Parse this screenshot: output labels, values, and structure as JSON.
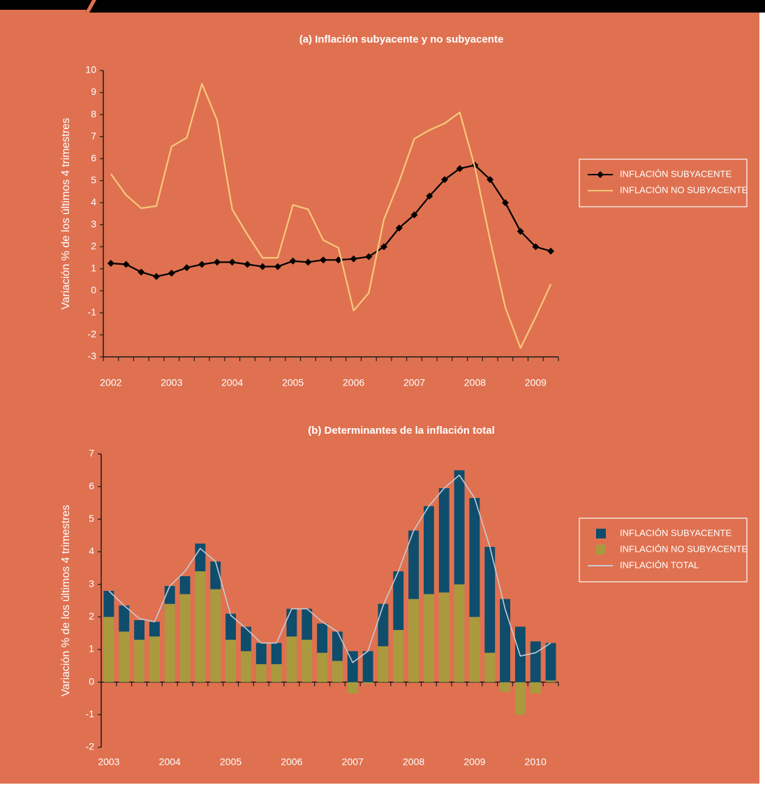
{
  "chart_data": [
    {
      "type": "line",
      "title": "(a) Inflación subyacente y no subyacente",
      "y_label": "Variación % de los últimos 4 trimestres",
      "categories": [
        "2002",
        null,
        null,
        null,
        "2003",
        null,
        null,
        null,
        "2004",
        null,
        null,
        null,
        "2005",
        null,
        null,
        null,
        "2006",
        null,
        null,
        null,
        "2007",
        null,
        null,
        null,
        "2008",
        null,
        null,
        null,
        "2009",
        null
      ],
      "ylim": [
        -3,
        10
      ],
      "yticks": [
        -3,
        -2,
        -1,
        0,
        1,
        2,
        3,
        4,
        5,
        6,
        7,
        8,
        9,
        10
      ],
      "legend": "right",
      "series": [
        {
          "name": "INFLACIÓN SUBYACENTE",
          "color": "#000000",
          "marker": "diamond",
          "values": [
            1.25,
            1.2,
            0.85,
            0.65,
            0.8,
            1.05,
            1.2,
            1.3,
            1.3,
            1.2,
            1.1,
            1.1,
            1.35,
            1.3,
            1.4,
            1.4,
            1.45,
            1.55,
            2.0,
            2.85,
            3.45,
            4.3,
            5.05,
            5.55,
            5.7,
            5.05,
            4.0,
            2.7,
            2.0,
            1.8
          ]
        },
        {
          "name": "INFLACIÓN NO SUBYACENTE",
          "color": "#f7c97a",
          "values": [
            5.3,
            4.35,
            3.75,
            3.85,
            6.55,
            6.95,
            9.4,
            7.75,
            3.7,
            2.55,
            1.5,
            1.5,
            3.9,
            3.7,
            2.3,
            1.95,
            -0.9,
            -0.1,
            3.25,
            4.95,
            6.9,
            7.3,
            7.6,
            8.1,
            5.6,
            2.3,
            -0.75,
            -2.6,
            -1.2,
            0.3
          ]
        }
      ]
    },
    {
      "type": "bar",
      "stacked": true,
      "title": "(b) Determinantes de la inflación total",
      "y_label": "Variación % de los últimos 4 trimestres",
      "categories": [
        "2003",
        null,
        null,
        null,
        "2004",
        null,
        null,
        null,
        "2005",
        null,
        null,
        null,
        "2006",
        null,
        null,
        null,
        "2007",
        null,
        null,
        null,
        "2008",
        null,
        null,
        null,
        "2009",
        null,
        null,
        null,
        "2010",
        null
      ],
      "ylim": [
        -2,
        7
      ],
      "yticks": [
        -2,
        -1,
        0,
        1,
        2,
        3,
        4,
        5,
        6,
        7
      ],
      "legend": "right",
      "series": [
        {
          "name": "INFLACIÓN SUBYACENTE",
          "color": "#0e4d6c",
          "values": [
            0.8,
            0.8,
            0.6,
            0.45,
            0.55,
            0.55,
            0.85,
            0.85,
            0.8,
            0.75,
            0.65,
            0.65,
            0.85,
            0.95,
            0.9,
            0.9,
            0.95,
            0.95,
            1.3,
            1.8,
            2.1,
            2.7,
            3.2,
            3.5,
            3.65,
            3.25,
            2.55,
            1.7,
            1.25,
            1.15
          ]
        },
        {
          "name": "INFLACIÓN NO SUBYACENTE",
          "color": "#a99a3e",
          "values": [
            2.0,
            1.55,
            1.3,
            1.4,
            2.4,
            2.7,
            3.4,
            2.85,
            1.3,
            0.95,
            0.55,
            0.55,
            1.4,
            1.3,
            0.9,
            0.65,
            -0.35,
            -0.05,
            1.1,
            1.6,
            2.55,
            2.7,
            2.75,
            3.0,
            2.0,
            0.9,
            -0.3,
            -1.0,
            -0.35,
            0.05
          ]
        },
        {
          "name": "INFLACIÓN TOTAL",
          "color": "#c9c9d2",
          "type": "line",
          "values": [
            2.8,
            2.35,
            1.95,
            1.85,
            2.95,
            3.4,
            4.1,
            3.7,
            2.05,
            1.65,
            1.2,
            1.2,
            2.25,
            2.25,
            1.85,
            1.55,
            0.6,
            0.95,
            2.35,
            3.4,
            4.65,
            5.4,
            5.95,
            6.35,
            5.65,
            4.15,
            2.25,
            0.8,
            0.9,
            1.2
          ]
        }
      ]
    }
  ]
}
